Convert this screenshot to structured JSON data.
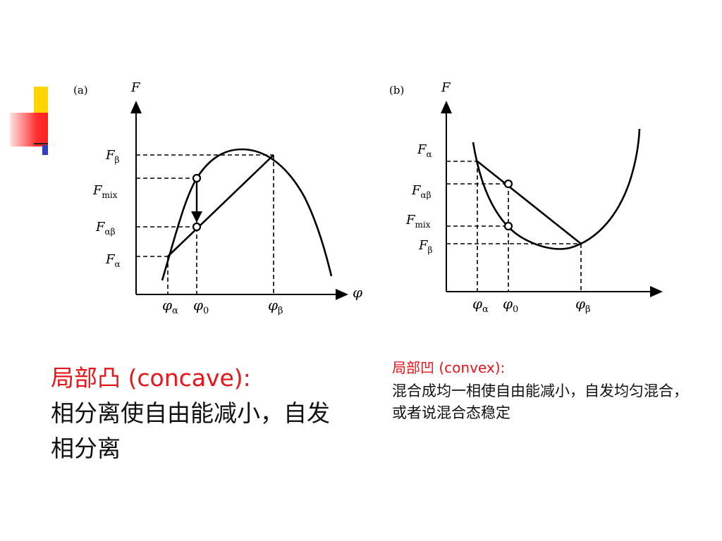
{
  "panel_a": {
    "label": "(a)",
    "y_axis": "F",
    "x_axis": "φ",
    "y_ticks": [
      {
        "main": "F",
        "sub": "β"
      },
      {
        "main": "F",
        "sub": "mix"
      },
      {
        "main": "F",
        "sub": "αβ"
      },
      {
        "main": "F",
        "sub": "α"
      }
    ],
    "x_ticks": [
      {
        "main": "φ",
        "sub": "α"
      },
      {
        "main": "φ",
        "sub": "0"
      },
      {
        "main": "φ",
        "sub": "β"
      }
    ]
  },
  "panel_b": {
    "label": "(b)",
    "y_axis": "F",
    "y_ticks": [
      {
        "main": "F",
        "sub": "α"
      },
      {
        "main": "F",
        "sub": "αβ"
      },
      {
        "main": "F",
        "sub": "mix"
      },
      {
        "main": "F",
        "sub": "β"
      }
    ],
    "x_ticks": [
      {
        "main": "φ",
        "sub": "α"
      },
      {
        "main": "φ",
        "sub": "0"
      },
      {
        "main": "φ",
        "sub": "β"
      }
    ]
  },
  "captions": {
    "a_title": "局部凸 (concave):",
    "a_body": "相分离使自由能减小，自发相分离",
    "b_title": "局部凹 (convex):",
    "b_body": "混合成均一相使自由能减小，自发均匀混合，或者说混合态稳定"
  },
  "colors": {
    "accent_red": "#e8161b",
    "deco_yellow": "#ffd400",
    "deco_blue": "#3040c0"
  }
}
